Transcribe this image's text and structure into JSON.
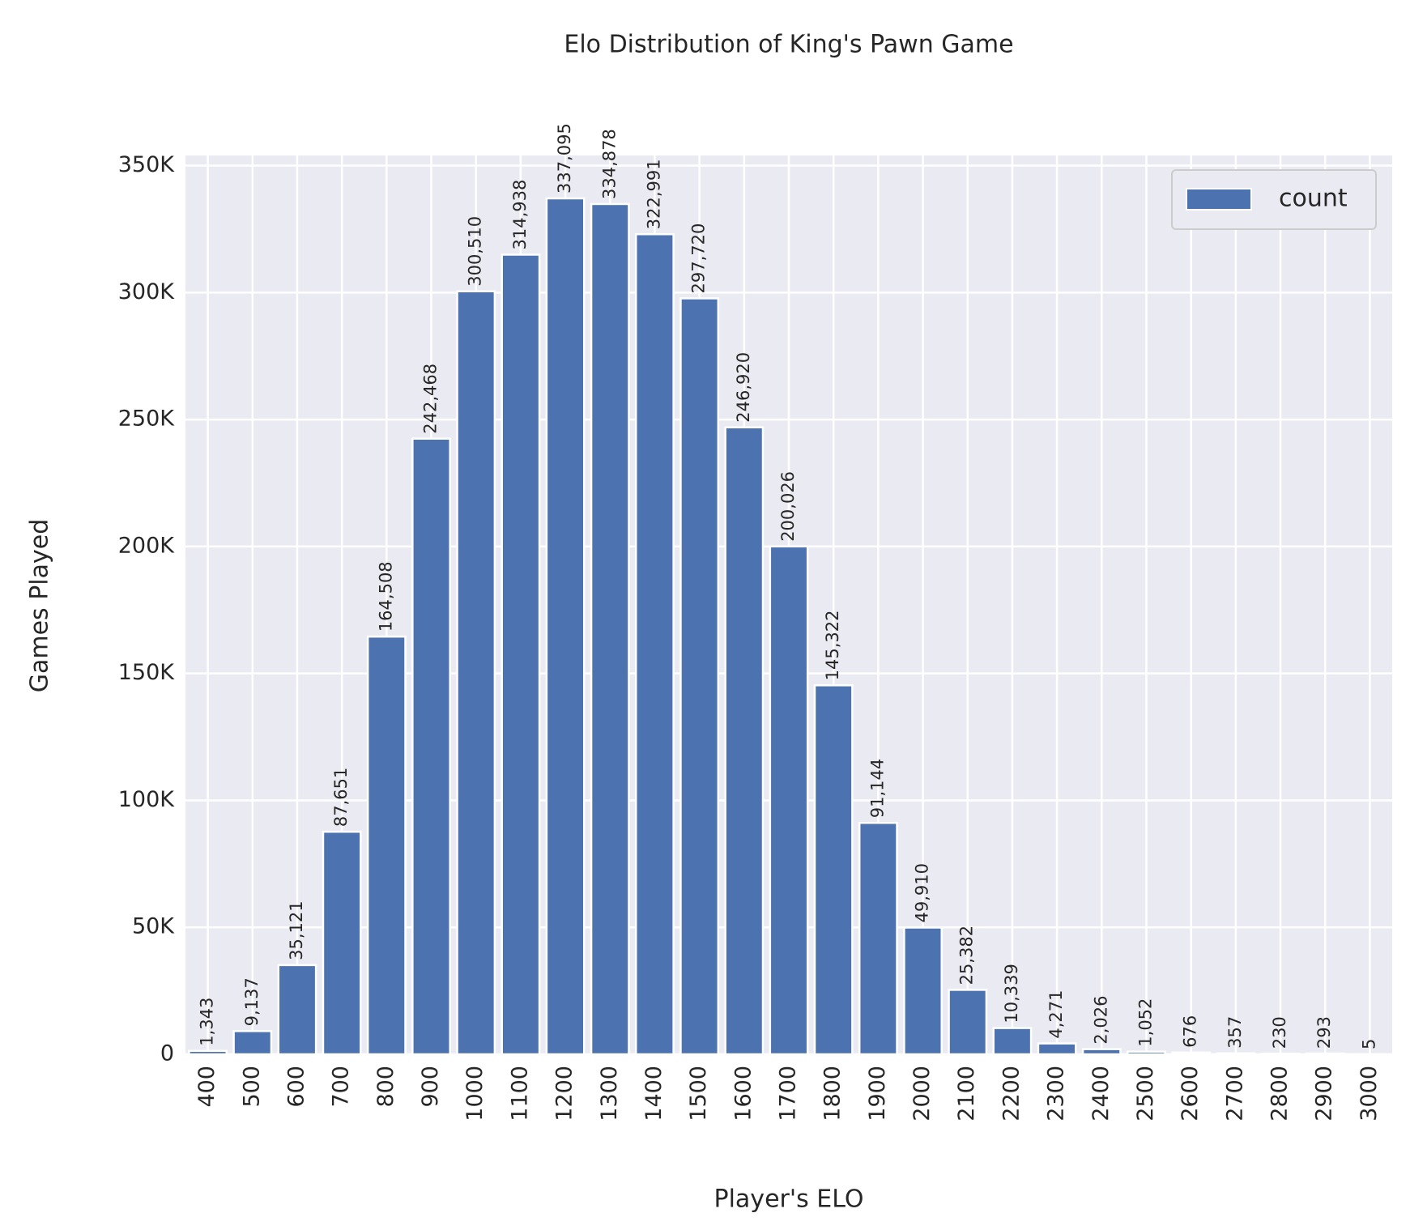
{
  "chart_data": {
    "type": "bar",
    "title": "Elo Distribution of King's Pawn Game",
    "x_label": "Player's ELO",
    "y_label": "Games Played",
    "categories": [
      "400",
      "500",
      "600",
      "700",
      "800",
      "900",
      "1000",
      "1100",
      "1200",
      "1300",
      "1400",
      "1500",
      "1600",
      "1700",
      "1800",
      "1900",
      "2000",
      "2100",
      "2200",
      "2300",
      "2400",
      "2500",
      "2600",
      "2700",
      "2800",
      "2900",
      "3000"
    ],
    "series": [
      {
        "name": "count",
        "color": "#4c72b0",
        "values": [
          1343,
          9137,
          35121,
          87651,
          164508,
          242468,
          300510,
          314938,
          337095,
          334878,
          322991,
          297720,
          246920,
          200026,
          145322,
          91144,
          49910,
          25382,
          10339,
          4271,
          2026,
          1052,
          676,
          357,
          230,
          293,
          5
        ],
        "value_labels": [
          "1,343",
          "9,137",
          "35,121",
          "87,651",
          "164,508",
          "242,468",
          "300,510",
          "314,938",
          "337,095",
          "334,878",
          "322,991",
          "297,720",
          "246,920",
          "200,026",
          "145,322",
          "91,144",
          "49,910",
          "25,382",
          "10,339",
          "4,271",
          "2,026",
          "1,052",
          "676",
          "357",
          "230",
          "293",
          "5"
        ]
      }
    ],
    "ylim": [
      0,
      354000
    ],
    "yticks": [
      0,
      {
        "value": 50000,
        "label": "50K"
      },
      {
        "value": 100000,
        "label": "100K"
      },
      {
        "value": 150000,
        "label": "150K"
      },
      {
        "value": 200000,
        "label": "200K"
      },
      {
        "value": 250000,
        "label": "250K"
      },
      {
        "value": 300000,
        "label": "300K"
      },
      {
        "value": 350000,
        "label": "350K"
      }
    ],
    "grid": true,
    "legend": "upper right"
  }
}
